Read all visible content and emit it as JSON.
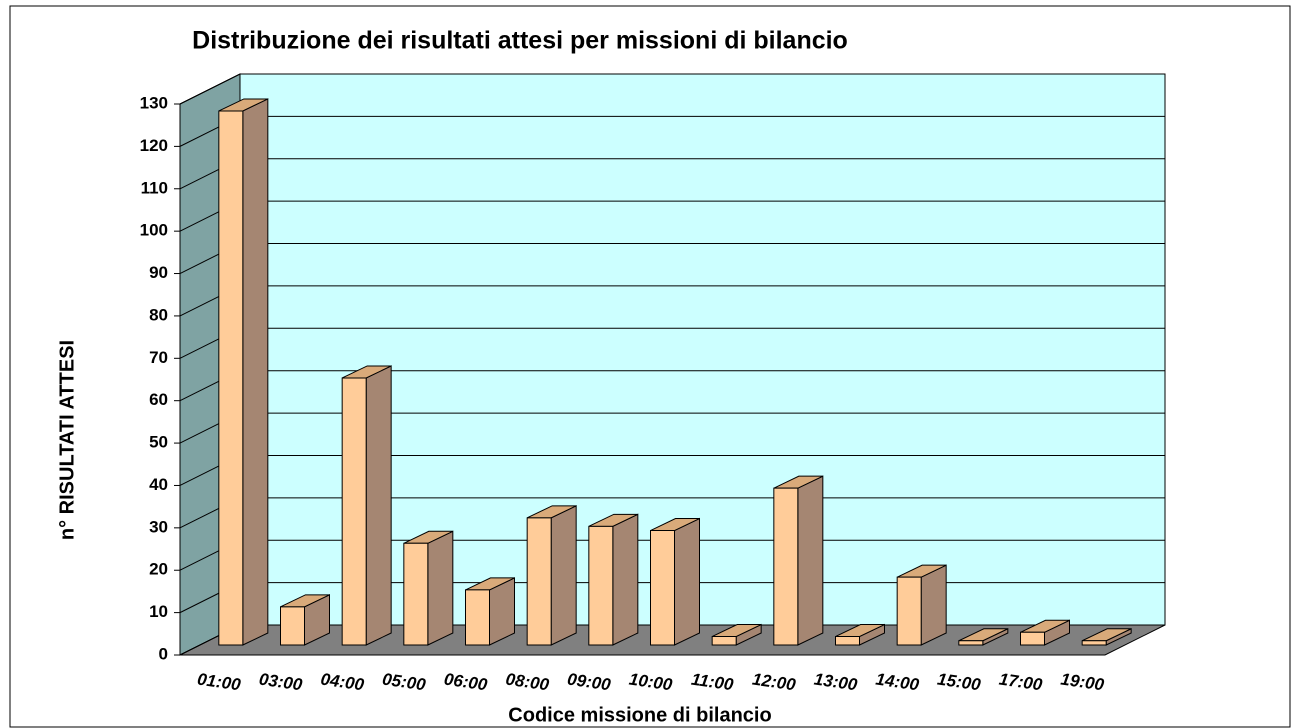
{
  "chart_data": {
    "type": "bar3d",
    "title": "Distribuzione dei risultati attesi per  missioni di bilancio",
    "x_label": "Codice missione di bilancio",
    "y_label": "n° RISULTATI ATTESI",
    "categories": [
      "01:00",
      "03:00",
      "04:00",
      "05:00",
      "06:00",
      "08:00",
      "09:00",
      "10:00",
      "11:00",
      "12:00",
      "13:00",
      "14:00",
      "15:00",
      "17:00",
      "19:00"
    ],
    "values": [
      126,
      9,
      63,
      24,
      13,
      30,
      28,
      27,
      2,
      37,
      2,
      16,
      1,
      3,
      1
    ],
    "color": "#ffcc99",
    "ylim": [
      0,
      130
    ],
    "yticks": [
      0,
      10,
      20,
      30,
      40,
      50,
      60,
      70,
      80,
      90,
      100,
      110,
      120,
      130
    ],
    "grid": true
  }
}
